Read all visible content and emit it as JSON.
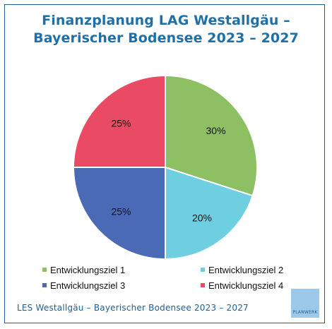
{
  "chart_data": {
    "type": "pie",
    "title_lines": [
      "Finanzplanung LAG Westallgäu –",
      "Bayerischer Bodensee 2023 – 2027"
    ],
    "slices": [
      {
        "name": "Entwicklungsziel 1",
        "value": 30,
        "label": "30%",
        "color": "#8cc063"
      },
      {
        "name": "Entwicklungsziel 2",
        "value": 20,
        "label": "20%",
        "color": "#6ecfe0"
      },
      {
        "name": "Entwicklungsziel 3",
        "value": 25,
        "label": "25%",
        "color": "#4a6ab5"
      },
      {
        "name": "Entwicklungsziel 4",
        "value": 25,
        "label": "25%",
        "color": "#e84b63"
      }
    ],
    "legend_position": "bottom"
  },
  "footer": {
    "text": "LES Westallgäu – Bayerischer Bodensee 2023 – 2027"
  },
  "logo": {
    "text": "PLANWERK"
  },
  "colors": {
    "title": "#1f6fa8",
    "frame": "#1f5f95"
  }
}
